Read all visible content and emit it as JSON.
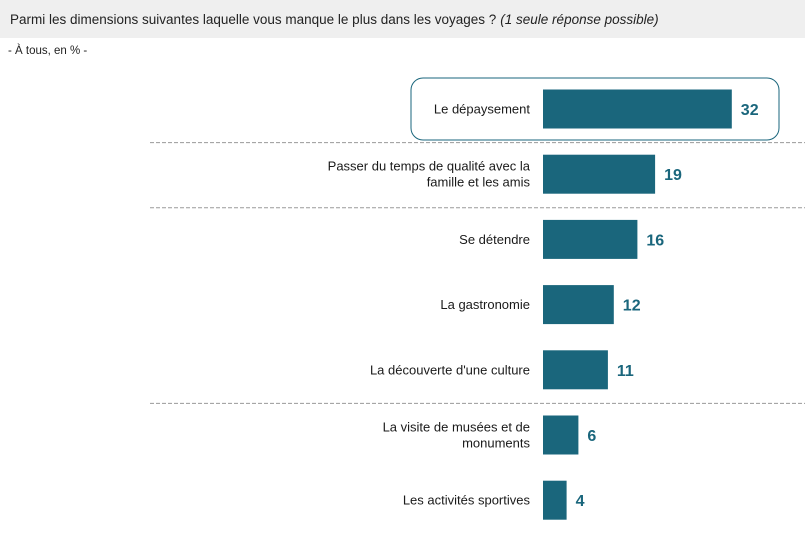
{
  "question": {
    "text": "Parmi les dimensions suivantes laquelle vous manque le plus dans les voyages ?",
    "note": "(1 seule réponse possible)"
  },
  "base": "- À tous, en % -",
  "colors": {
    "bar": "#1a667c",
    "value": "#1a667c",
    "highlight_border": "#1a667c",
    "divider": "#9a9a9a"
  },
  "chart_data": {
    "type": "bar",
    "orientation": "horizontal",
    "categories": [
      [
        "Le dépaysement"
      ],
      [
        "Passer du temps de qualité avec la",
        "famille et les amis"
      ],
      [
        "Se détendre"
      ],
      [
        "La gastronomie"
      ],
      [
        "La découverte d'une culture"
      ],
      [
        "La visite de musées et de",
        "monuments"
      ],
      [
        "Les activités sportives"
      ]
    ],
    "values": [
      32,
      19,
      16,
      12,
      11,
      6,
      4
    ],
    "highlighted_category_index": 0,
    "divider_after_indices": [
      0,
      1,
      4
    ]
  }
}
